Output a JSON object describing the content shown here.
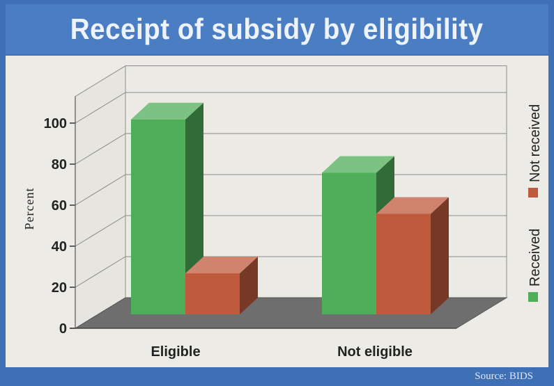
{
  "chart_data": {
    "type": "bar",
    "title": "Receipt of subsidy by eligibility",
    "xlabel": "",
    "ylabel": "Percent",
    "categories": [
      "Eligible",
      "Not eligible"
    ],
    "series": [
      {
        "name": "Received",
        "values": [
          95,
          69
        ],
        "color": "#4fae5a"
      },
      {
        "name": "Not received",
        "values": [
          20,
          49
        ],
        "color": "#c05a3c"
      }
    ],
    "yticks": [
      "0",
      "20",
      "40",
      "60",
      "80",
      "100"
    ],
    "ylim": [
      0,
      100
    ],
    "grid": true,
    "legend_placement": "right",
    "source": "Source: BIDS"
  }
}
